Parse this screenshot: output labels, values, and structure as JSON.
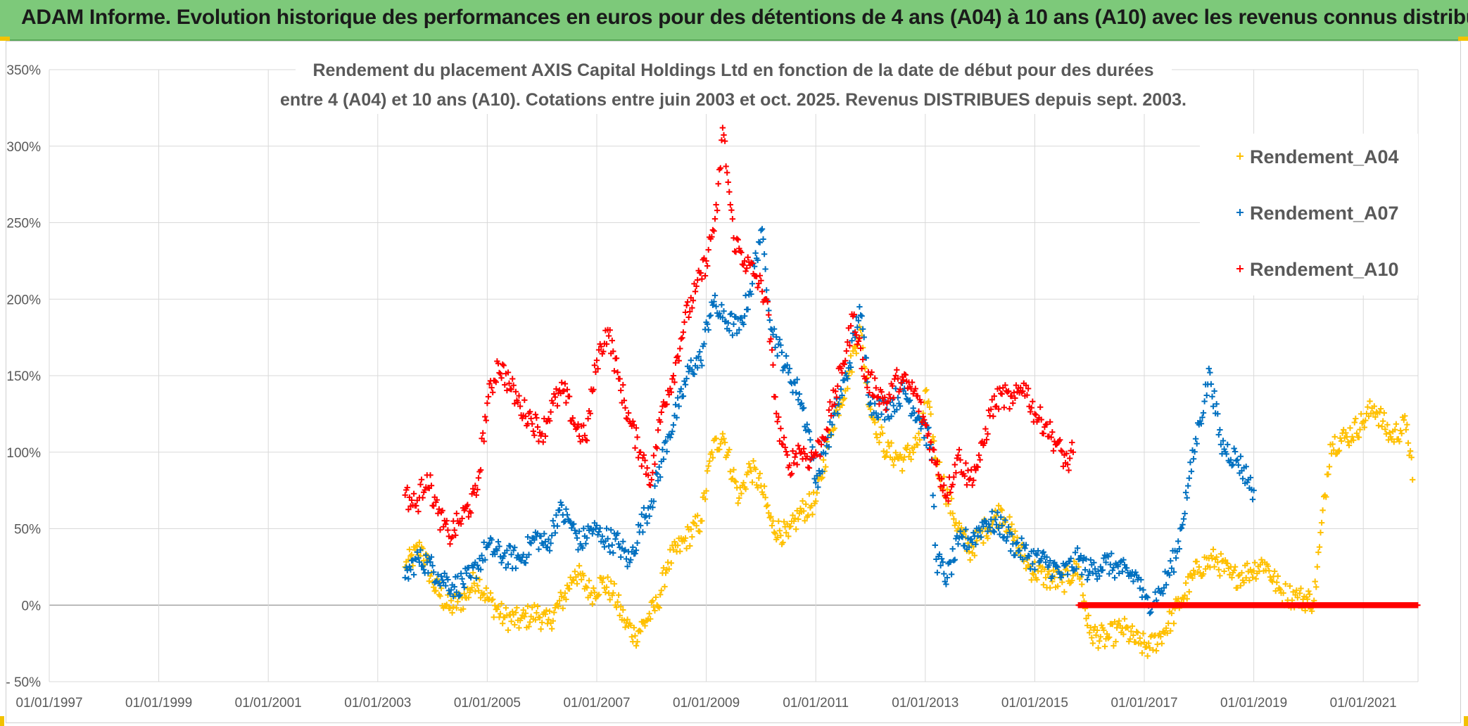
{
  "header": {
    "banner_title": "ADAM Informe. Evolution historique des performances en euros pour des détentions de 4 ans (A04) à 10 ans (A10) avec les revenus connus distribués"
  },
  "colors": {
    "banner": "#7dc97a",
    "A04": "#ffc000",
    "A07": "#0070c0",
    "A10": "#ff0000",
    "grid": "#d9d9d9",
    "text": "#595959"
  },
  "chart_data": {
    "type": "scatter",
    "marker": "+",
    "title_lines": [
      "Rendement du placement AXIS Capital Holdings Ltd en fonction de la date de début pour des durées",
      "entre 4 (A04) et 10 ans (A10). Cotations entre juin 2003 et oct. 2025. Revenus DISTRIBUES depuis sept. 2003."
    ],
    "xlabel": "",
    "ylabel": "",
    "x_range": [
      1997.0,
      2022.0
    ],
    "x_ticks": [
      "01/01/1997",
      "01/01/1999",
      "01/01/2001",
      "01/01/2003",
      "01/01/2005",
      "01/01/2007",
      "01/01/2009",
      "01/01/2011",
      "01/01/2013",
      "01/01/2015",
      "01/01/2017",
      "01/01/2019",
      "01/01/2021"
    ],
    "y_range": [
      -50,
      350
    ],
    "y_ticks": [
      "- 50%",
      "0%",
      "50%",
      "100%",
      "150%",
      "200%",
      "250%",
      "300%",
      "350%"
    ],
    "grid": true,
    "legend_position": "top-right",
    "series": [
      {
        "name": "Rendement_A04",
        "color": "#ffc000",
        "points": [
          [
            2003.5,
            25
          ],
          [
            2003.8,
            38
          ],
          [
            2004.0,
            15
          ],
          [
            2004.3,
            -2
          ],
          [
            2004.6,
            5
          ],
          [
            2004.8,
            18
          ],
          [
            2005.0,
            5
          ],
          [
            2005.3,
            -8
          ],
          [
            2005.6,
            -10
          ],
          [
            2005.9,
            -5
          ],
          [
            2006.1,
            -12
          ],
          [
            2006.4,
            5
          ],
          [
            2006.6,
            22
          ],
          [
            2006.9,
            8
          ],
          [
            2007.1,
            15
          ],
          [
            2007.3,
            8
          ],
          [
            2007.5,
            -10
          ],
          [
            2007.7,
            -20
          ],
          [
            2007.9,
            -10
          ],
          [
            2008.1,
            0
          ],
          [
            2008.3,
            28
          ],
          [
            2008.6,
            42
          ],
          [
            2008.9,
            55
          ],
          [
            2009.1,
            100
          ],
          [
            2009.3,
            112
          ],
          [
            2009.6,
            70
          ],
          [
            2009.8,
            90
          ],
          [
            2010.0,
            78
          ],
          [
            2010.2,
            52
          ],
          [
            2010.5,
            45
          ],
          [
            2010.7,
            60
          ],
          [
            2011.0,
            68
          ],
          [
            2011.3,
            118
          ],
          [
            2011.6,
            150
          ],
          [
            2011.8,
            182
          ],
          [
            2012.0,
            128
          ],
          [
            2012.3,
            100
          ],
          [
            2012.6,
            95
          ],
          [
            2012.9,
            108
          ],
          [
            2013.0,
            140
          ],
          [
            2013.2,
            95
          ],
          [
            2013.5,
            60
          ],
          [
            2013.8,
            35
          ],
          [
            2014.1,
            50
          ],
          [
            2014.4,
            62
          ],
          [
            2014.6,
            45
          ],
          [
            2014.9,
            25
          ],
          [
            2015.2,
            18
          ],
          [
            2015.5,
            15
          ],
          [
            2015.8,
            25
          ],
          [
            2016.0,
            -18
          ],
          [
            2016.3,
            -22
          ],
          [
            2016.6,
            -15
          ],
          [
            2016.9,
            -25
          ],
          [
            2017.1,
            -28
          ],
          [
            2017.4,
            -15
          ],
          [
            2017.7,
            5
          ],
          [
            2018.0,
            25
          ],
          [
            2018.3,
            30
          ],
          [
            2018.6,
            18
          ],
          [
            2018.9,
            22
          ],
          [
            2019.2,
            28
          ],
          [
            2019.5,
            8
          ],
          [
            2019.8,
            5
          ],
          [
            2020.1,
            3
          ],
          [
            2020.2,
            38
          ],
          [
            2020.4,
            105
          ],
          [
            2020.7,
            110
          ],
          [
            2021.0,
            120
          ],
          [
            2021.2,
            130
          ],
          [
            2021.5,
            110
          ],
          [
            2021.8,
            118
          ],
          [
            2021.9,
            82
          ]
        ]
      },
      {
        "name": "Rendement_A07",
        "color": "#0070c0",
        "points": [
          [
            2003.5,
            18
          ],
          [
            2003.7,
            30
          ],
          [
            2003.9,
            28
          ],
          [
            2004.1,
            20
          ],
          [
            2004.4,
            12
          ],
          [
            2004.7,
            18
          ],
          [
            2005.0,
            38
          ],
          [
            2005.3,
            32
          ],
          [
            2005.6,
            30
          ],
          [
            2005.9,
            45
          ],
          [
            2006.1,
            38
          ],
          [
            2006.3,
            62
          ],
          [
            2006.5,
            55
          ],
          [
            2006.7,
            40
          ],
          [
            2006.9,
            50
          ],
          [
            2007.1,
            45
          ],
          [
            2007.4,
            40
          ],
          [
            2007.6,
            28
          ],
          [
            2007.8,
            52
          ],
          [
            2008.0,
            68
          ],
          [
            2008.3,
            110
          ],
          [
            2008.5,
            130
          ],
          [
            2008.7,
            155
          ],
          [
            2008.9,
            160
          ],
          [
            2009.1,
            198
          ],
          [
            2009.3,
            188
          ],
          [
            2009.6,
            180
          ],
          [
            2009.8,
            205
          ],
          [
            2010.0,
            245
          ],
          [
            2010.2,
            180
          ],
          [
            2010.5,
            152
          ],
          [
            2010.7,
            138
          ],
          [
            2010.9,
            108
          ],
          [
            2011.0,
            80
          ],
          [
            2011.3,
            118
          ],
          [
            2011.6,
            155
          ],
          [
            2011.8,
            195
          ],
          [
            2012.0,
            132
          ],
          [
            2012.3,
            128
          ],
          [
            2012.6,
            140
          ],
          [
            2012.9,
            122
          ],
          [
            2013.1,
            105
          ],
          [
            2013.2,
            30
          ],
          [
            2013.4,
            18
          ],
          [
            2013.6,
            40
          ],
          [
            2013.9,
            45
          ],
          [
            2014.1,
            55
          ],
          [
            2014.4,
            52
          ],
          [
            2014.6,
            40
          ],
          [
            2014.9,
            32
          ],
          [
            2015.2,
            28
          ],
          [
            2015.5,
            20
          ],
          [
            2015.8,
            30
          ],
          [
            2016.0,
            22
          ],
          [
            2016.3,
            28
          ],
          [
            2016.6,
            22
          ],
          [
            2016.9,
            18
          ],
          [
            2017.0,
            0
          ],
          [
            2017.3,
            8
          ],
          [
            2017.6,
            35
          ],
          [
            2017.8,
            78
          ],
          [
            2018.0,
            118
          ],
          [
            2018.2,
            152
          ],
          [
            2018.4,
            105
          ],
          [
            2018.7,
            95
          ],
          [
            2018.9,
            82
          ],
          [
            2019.0,
            75
          ]
        ]
      },
      {
        "name": "Rendement_A10",
        "color": "#ff0000",
        "points": [
          [
            2003.5,
            72
          ],
          [
            2003.7,
            65
          ],
          [
            2003.9,
            85
          ],
          [
            2004.1,
            60
          ],
          [
            2004.3,
            45
          ],
          [
            2004.5,
            55
          ],
          [
            2004.8,
            72
          ],
          [
            2005.0,
            132
          ],
          [
            2005.2,
            158
          ],
          [
            2005.4,
            145
          ],
          [
            2005.6,
            130
          ],
          [
            2005.8,
            122
          ],
          [
            2006.0,
            112
          ],
          [
            2006.2,
            132
          ],
          [
            2006.4,
            140
          ],
          [
            2006.6,
            118
          ],
          [
            2006.8,
            108
          ],
          [
            2007.0,
            160
          ],
          [
            2007.2,
            180
          ],
          [
            2007.4,
            148
          ],
          [
            2007.6,
            120
          ],
          [
            2007.8,
            100
          ],
          [
            2008.0,
            82
          ],
          [
            2008.2,
            130
          ],
          [
            2008.4,
            150
          ],
          [
            2008.6,
            185
          ],
          [
            2008.8,
            205
          ],
          [
            2009.0,
            225
          ],
          [
            2009.2,
            258
          ],
          [
            2009.3,
            312
          ],
          [
            2009.5,
            240
          ],
          [
            2009.7,
            225
          ],
          [
            2009.9,
            215
          ],
          [
            2010.1,
            200
          ],
          [
            2010.3,
            120
          ],
          [
            2010.5,
            90
          ],
          [
            2010.7,
            102
          ],
          [
            2010.9,
            95
          ],
          [
            2011.1,
            105
          ],
          [
            2011.3,
            130
          ],
          [
            2011.5,
            158
          ],
          [
            2011.7,
            190
          ],
          [
            2011.9,
            148
          ],
          [
            2012.1,
            142
          ],
          [
            2012.3,
            132
          ],
          [
            2012.5,
            148
          ],
          [
            2012.8,
            140
          ],
          [
            2013.0,
            118
          ],
          [
            2013.2,
            92
          ],
          [
            2013.4,
            72
          ],
          [
            2013.6,
            98
          ],
          [
            2013.8,
            82
          ],
          [
            2014.0,
            95
          ],
          [
            2014.2,
            128
          ],
          [
            2014.4,
            138
          ],
          [
            2014.6,
            132
          ],
          [
            2014.8,
            145
          ],
          [
            2015.0,
            125
          ],
          [
            2015.2,
            118
          ],
          [
            2015.4,
            105
          ],
          [
            2015.6,
            92
          ],
          [
            2015.7,
            100
          ]
        ]
      },
      {
        "name": "Rendement_A10",
        "color": "#ff0000",
        "flat_segment": {
          "x_from": 2015.8,
          "x_to": 2022.0,
          "value": 0
        }
      }
    ]
  }
}
